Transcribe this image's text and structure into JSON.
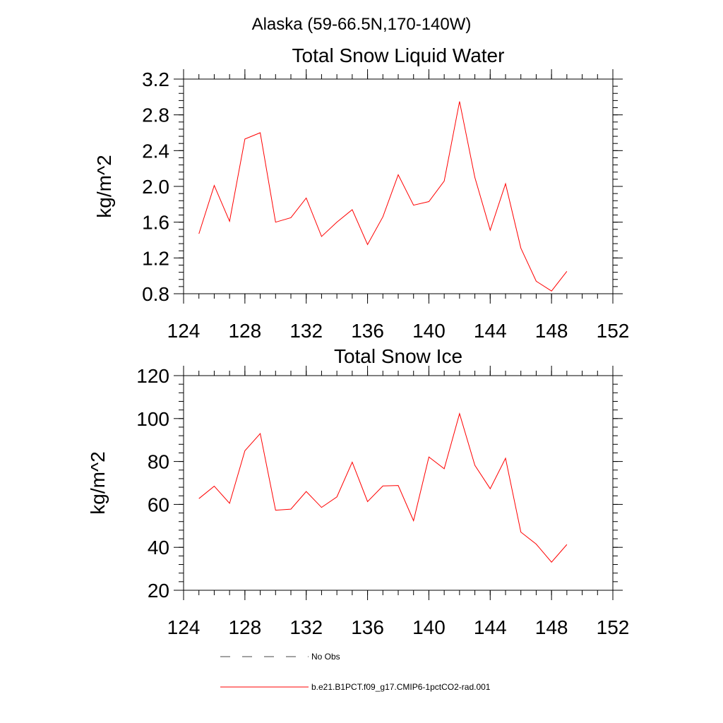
{
  "figure_title": "Alaska (59-66.5N,170-140W)",
  "legend": [
    {
      "label": "No Obs",
      "color": "#000000",
      "style": "dashed"
    },
    {
      "label": "b.e21.B1PCT.f09_g17.CMIP6-1pctCO2-rad.001",
      "color": "#ff0000",
      "style": "solid"
    }
  ],
  "chart_data": [
    {
      "type": "line",
      "title": "Total Snow Liquid Water",
      "xlabel": "",
      "ylabel": "kg/m^2",
      "xlim": [
        124,
        152
      ],
      "ylim": [
        0.8,
        3.2
      ],
      "xticks": [
        124,
        128,
        132,
        136,
        140,
        144,
        148,
        152
      ],
      "xtick_labels": [
        "124",
        "128",
        "132",
        "136",
        "140",
        "144",
        "148",
        "152"
      ],
      "yticks": [
        0.8,
        1.2,
        1.6,
        2.0,
        2.4,
        2.8,
        3.2
      ],
      "ytick_labels": [
        "0.8",
        "1.2",
        "1.6",
        "2.0",
        "2.4",
        "2.8",
        "3.2"
      ],
      "grid": false,
      "series": [
        {
          "color": "#ff0000",
          "x": [
            125,
            126,
            127,
            128,
            129,
            130,
            131,
            132,
            133,
            134,
            135,
            136,
            137,
            138,
            139,
            140,
            141,
            142,
            143,
            144,
            145,
            146,
            147,
            148,
            149
          ],
          "y": [
            1.47,
            2.01,
            1.61,
            2.53,
            2.6,
            1.6,
            1.65,
            1.87,
            1.44,
            1.6,
            1.74,
            1.35,
            1.66,
            2.13,
            1.79,
            1.83,
            2.06,
            2.95,
            2.1,
            1.51,
            2.03,
            1.31,
            0.94,
            0.83,
            1.05
          ]
        }
      ]
    },
    {
      "type": "line",
      "title": "Total Snow Ice",
      "xlabel": "",
      "ylabel": "kg/m^2",
      "xlim": [
        124,
        152
      ],
      "ylim": [
        20,
        120
      ],
      "xticks": [
        124,
        128,
        132,
        136,
        140,
        144,
        148,
        152
      ],
      "xtick_labels": [
        "124",
        "128",
        "132",
        "136",
        "140",
        "144",
        "148",
        "152"
      ],
      "yticks": [
        20,
        40,
        60,
        80,
        100,
        120
      ],
      "ytick_labels": [
        "20",
        "40",
        "60",
        "80",
        "100",
        "120"
      ],
      "grid": false,
      "series": [
        {
          "color": "#ff0000",
          "x": [
            125,
            126,
            127,
            128,
            129,
            130,
            131,
            132,
            133,
            134,
            135,
            136,
            137,
            138,
            139,
            140,
            141,
            142,
            143,
            144,
            145,
            146,
            147,
            148,
            149
          ],
          "y": [
            62.7,
            68.5,
            60.5,
            85,
            93,
            57.3,
            57.8,
            66,
            58.6,
            63.5,
            79.7,
            61.3,
            68.6,
            68.8,
            52.4,
            82.1,
            76.6,
            102.3,
            78.2,
            67.3,
            81.5,
            47.1,
            41.5,
            33.1,
            41.3
          ]
        }
      ]
    }
  ]
}
